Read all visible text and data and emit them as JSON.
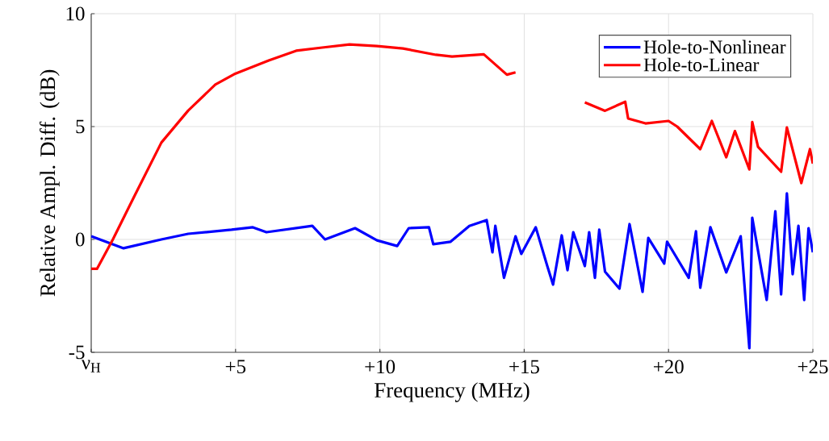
{
  "chart_data": {
    "type": "line",
    "xlabel": "Frequency (MHz)",
    "ylabel": "Relative Ampl. Diff. (dB)",
    "xlim": [
      0,
      25
    ],
    "ylim": [
      -5,
      10
    ],
    "xticks": [
      {
        "value": 0,
        "label": "ν$_{H}$"
      },
      {
        "value": 5,
        "label": "+5"
      },
      {
        "value": 10,
        "label": "+10"
      },
      {
        "value": 15,
        "label": "+15"
      },
      {
        "value": 20,
        "label": "+20"
      },
      {
        "value": 25,
        "label": "+25"
      }
    ],
    "yticks": [
      -5,
      0,
      5,
      10
    ],
    "grid": true,
    "legend": "top right",
    "series": [
      {
        "name": "Hole-to-Nonlinear",
        "color": "#0000ff",
        "x": [
          0,
          1.12,
          2.43,
          3.36,
          4.86,
          5.6,
          6.07,
          7.66,
          8.1,
          9.14,
          9.9,
          10.6,
          11.0,
          11.7,
          11.85,
          12.45,
          13.1,
          13.7,
          13.9,
          14.0,
          14.3,
          14.7,
          14.9,
          15.4,
          15.8,
          16.0,
          16.3,
          16.5,
          16.7,
          17.1,
          17.25,
          17.45,
          17.6,
          17.8,
          18.3,
          18.65,
          19.1,
          19.3,
          19.85,
          19.95,
          20.7,
          20.95,
          21.1,
          21.45,
          22.0,
          22.5,
          22.8,
          22.9,
          23.4,
          23.7,
          23.9,
          24.1,
          24.3,
          24.5,
          24.7,
          24.85,
          25
        ],
        "values": [
          0.14,
          -0.39,
          0.0,
          0.25,
          0.43,
          0.54,
          0.32,
          0.6,
          0.0,
          0.5,
          -0.04,
          -0.29,
          0.5,
          0.54,
          -0.21,
          -0.1,
          0.6,
          0.86,
          -0.57,
          0.6,
          -1.7,
          0.14,
          -0.64,
          0.54,
          -1.18,
          -2.0,
          0.18,
          -1.36,
          0.32,
          -1.18,
          0.32,
          -1.7,
          0.43,
          -1.43,
          -2.18,
          0.68,
          -2.32,
          0.07,
          -1.07,
          -0.1,
          -1.7,
          0.36,
          -2.14,
          0.54,
          -1.46,
          0.14,
          -4.82,
          0.96,
          -2.68,
          1.25,
          -2.43,
          2.04,
          -1.54,
          0.6,
          -2.68,
          0.5,
          -0.57
        ]
      },
      {
        "name": "Hole-to-Linear",
        "color": "#ff0000",
        "x": [
          0,
          0.2,
          0.75,
          1.5,
          2.43,
          3.36,
          4.3,
          4.95,
          6.15,
          7.1,
          8.0,
          8.95,
          9.9,
          10.8,
          11.94,
          12.5,
          13.6,
          14.4,
          14.7,
          16.0,
          17.1,
          17.8,
          18.5,
          18.6,
          19.2,
          20.0,
          20.3,
          21.1,
          21.5,
          22.0,
          22.3,
          22.8,
          22.9,
          23.1,
          23.9,
          24.1,
          24.6,
          24.9,
          25
        ],
        "values": [
          -1.3,
          -1.3,
          0.0,
          1.93,
          4.29,
          5.71,
          6.86,
          7.32,
          7.93,
          8.36,
          8.5,
          8.64,
          8.57,
          8.46,
          8.18,
          8.1,
          8.2,
          7.3,
          7.4,
          null,
          6.07,
          5.7,
          6.1,
          5.36,
          5.14,
          5.25,
          5.0,
          4.0,
          5.25,
          3.64,
          4.8,
          3.1,
          5.2,
          4.1,
          3.0,
          4.96,
          2.5,
          4.0,
          3.36
        ]
      }
    ]
  }
}
